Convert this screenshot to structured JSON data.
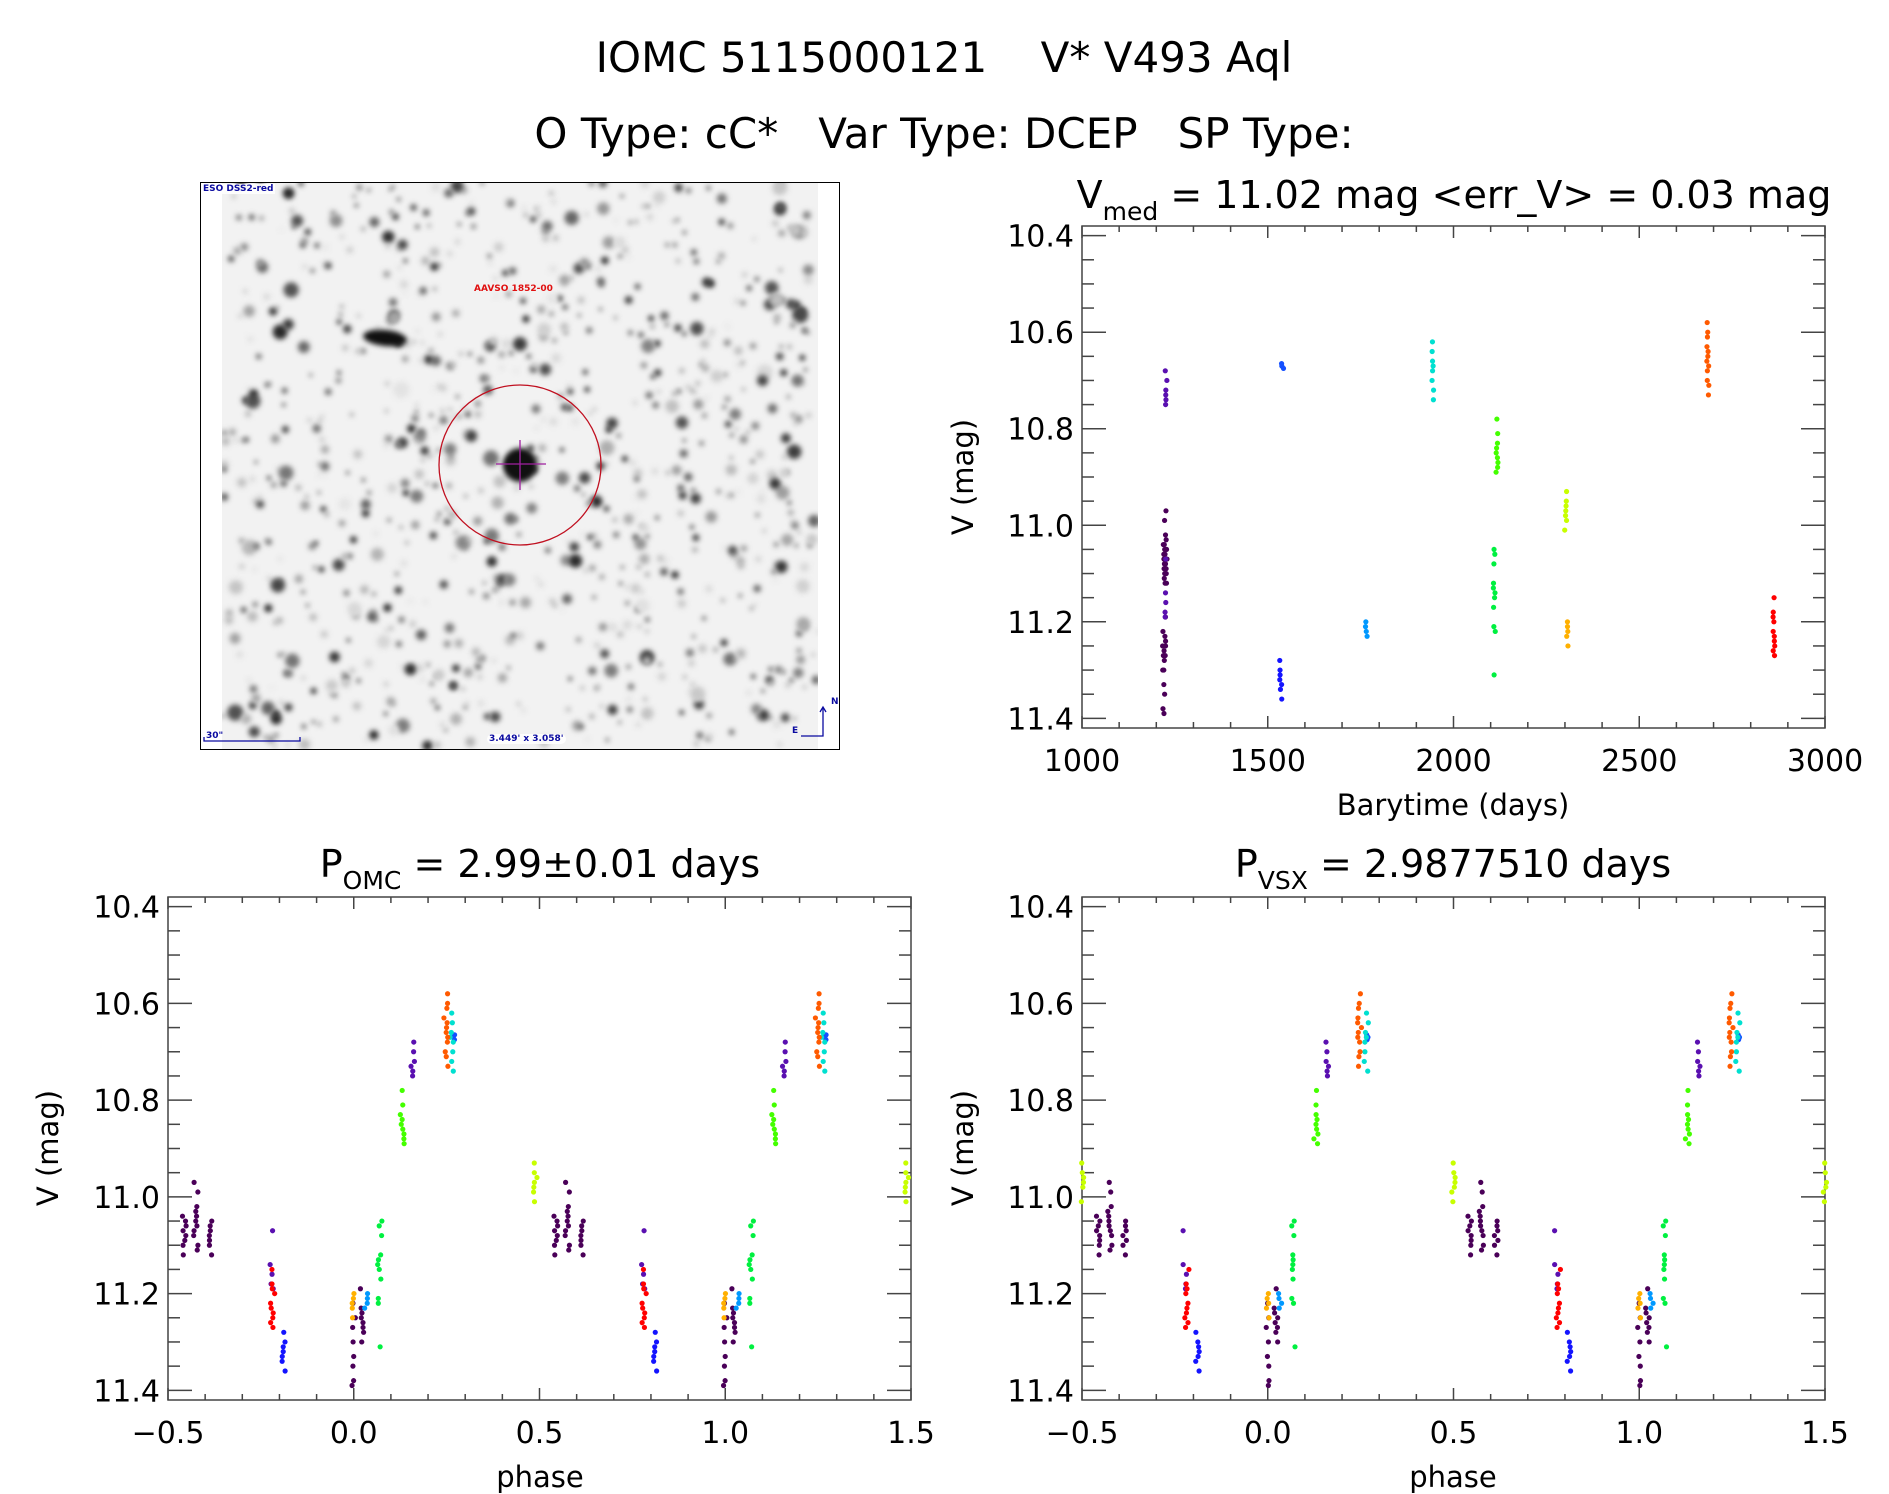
{
  "header": {
    "line1": "IOMC 5115000121    V* V493 Aql",
    "line2": "O Type: cC*   Var Type: DCEP   SP Type:"
  },
  "finder": {
    "survey_label": "ESO DSS2-red",
    "target_label": "AAVSO 1852-00",
    "scale_label": "30\"",
    "fov_label": "3.449' x 3.058'",
    "north_label": "N",
    "east_label": "E"
  },
  "chart_data": [
    {
      "type": "scatter",
      "id": "lightcurve",
      "title": {
        "main": "V",
        "sub": "med",
        "rest": " = 11.02 mag <err_V> = 0.03 mag"
      },
      "xlabel": "Barytime (days)",
      "ylabel": "V (mag)",
      "xlim": [
        1000,
        3000
      ],
      "ylim": [
        11.42,
        10.38
      ],
      "xticks": [
        1000,
        1500,
        2000,
        2500,
        3000
      ],
      "xtick_labels": [
        "1000",
        "1500",
        "2000",
        "2500",
        "3000"
      ],
      "yticks": [
        10.4,
        10.6,
        10.8,
        11.0,
        11.2,
        11.4
      ],
      "ytick_labels": [
        "10.4",
        "10.6",
        "10.8",
        "11.0",
        "11.2",
        "11.4"
      ]
    },
    {
      "type": "scatter",
      "id": "phase_omc",
      "title": {
        "main": "P",
        "sub": "OMC",
        "rest": " = 2.99±0.01 days"
      },
      "xlabel": "phase",
      "ylabel": "V (mag)",
      "xlim": [
        -0.5,
        1.5
      ],
      "ylim": [
        11.42,
        10.38
      ],
      "xticks": [
        -0.5,
        0.0,
        0.5,
        1.0,
        1.5
      ],
      "xtick_labels": [
        "−0.5",
        "0.0",
        "0.5",
        "1.0",
        "1.5"
      ],
      "yticks": [
        10.4,
        10.6,
        10.8,
        11.0,
        11.2,
        11.4
      ],
      "ytick_labels": [
        "10.4",
        "10.6",
        "10.8",
        "11.0",
        "11.2",
        "11.4"
      ]
    },
    {
      "type": "scatter",
      "id": "phase_vsx",
      "title": {
        "main": "P",
        "sub": "VSX",
        "rest": " = 2.9877510 days"
      },
      "xlabel": "phase",
      "ylabel": "V (mag)",
      "xlim": [
        -0.5,
        1.5
      ],
      "ylim": [
        11.42,
        10.38
      ],
      "xticks": [
        -0.5,
        0.0,
        0.5,
        1.0,
        1.5
      ],
      "xtick_labels": [
        "−0.5",
        "0.0",
        "0.5",
        "1.0",
        "1.5"
      ],
      "yticks": [
        10.4,
        10.6,
        10.8,
        11.0,
        11.2,
        11.4
      ],
      "ytick_labels": [
        "10.4",
        "10.6",
        "10.8",
        "11.0",
        "11.2",
        "11.4"
      ]
    }
  ],
  "observations": [
    {
      "color": "#4a0058",
      "t": 1222,
      "phase_omc": -0.455,
      "phase_vsx": -0.455,
      "mags": [
        11.04,
        11.05,
        11.06,
        11.07,
        11.08,
        11.09,
        11.1,
        11.12
      ]
    },
    {
      "color": "#4a0058",
      "t": 1224,
      "phase_omc": -0.425,
      "phase_vsx": -0.425,
      "mags": [
        10.97,
        10.99,
        11.02,
        11.03,
        11.04,
        11.05,
        11.06,
        11.07,
        11.08,
        11.1,
        11.11
      ]
    },
    {
      "color": "#4a0058",
      "t": 1226,
      "phase_omc": -0.385,
      "phase_vsx": -0.385,
      "mags": [
        11.05,
        11.06,
        11.07,
        11.08,
        11.09,
        11.1,
        11.12
      ]
    },
    {
      "color": "#4a0058",
      "t": 1220,
      "phase_omc": 0.0,
      "phase_vsx": 0.0,
      "mags": [
        11.22,
        11.25,
        11.27,
        11.3,
        11.33,
        11.35,
        11.38,
        11.39
      ]
    },
    {
      "color": "#4a0058",
      "t": 1223,
      "phase_omc": 0.022,
      "phase_vsx": 0.022,
      "mags": [
        11.19,
        11.23,
        11.24,
        11.25,
        11.26,
        11.27,
        11.28,
        11.3
      ]
    },
    {
      "color": "#5a10b0",
      "t": 1226,
      "phase_omc": 0.158,
      "phase_vsx": 0.158,
      "mags": [
        10.68,
        10.7,
        10.72,
        10.73,
        10.74,
        10.75
      ]
    },
    {
      "color": "#5a10b0",
      "t": 1225,
      "phase_omc": -0.222,
      "phase_vsx": -0.222,
      "mags": [
        11.07,
        11.14,
        11.16,
        11.18,
        11.19
      ]
    },
    {
      "color": "#1414ff",
      "t": 1535,
      "phase_omc": -0.19,
      "phase_vsx": -0.19,
      "mags": [
        11.28,
        11.3,
        11.31,
        11.32,
        11.33,
        11.34,
        11.36
      ]
    },
    {
      "color": "#1450ff",
      "t": 1540,
      "phase_omc": 0.27,
      "phase_vsx": 0.27,
      "mags": [
        10.665,
        10.67,
        10.675
      ]
    },
    {
      "color": "#0098ff",
      "t": 1765,
      "phase_omc": 0.035,
      "phase_vsx": 0.035,
      "mags": [
        11.2,
        11.21,
        11.22,
        11.23
      ]
    },
    {
      "color": "#00e0d0",
      "t": 1945,
      "phase_omc": 0.265,
      "phase_vsx": 0.265,
      "mags": [
        10.62,
        10.64,
        10.66,
        10.67,
        10.68,
        10.7,
        10.72,
        10.74
      ]
    },
    {
      "color": "#44ff00",
      "t": 2117,
      "phase_omc": 0.13,
      "phase_vsx": 0.13,
      "mags": [
        10.78,
        10.81,
        10.83,
        10.84,
        10.85,
        10.86,
        10.87,
        10.88,
        10.89
      ]
    },
    {
      "color": "#00f040",
      "t": 2110,
      "phase_omc": 0.07,
      "phase_vsx": 0.07,
      "mags": [
        11.05,
        11.06,
        11.08,
        11.12,
        11.13,
        11.14,
        11.15,
        11.17,
        11.21,
        11.22,
        11.31
      ]
    },
    {
      "color": "#c8ff00",
      "t": 2302,
      "phase_omc": 0.49,
      "phase_vsx": 0.5,
      "mags": [
        10.93,
        10.95,
        10.96,
        10.97,
        10.98,
        10.99,
        11.01
      ]
    },
    {
      "color": "#ffb000",
      "t": 2306,
      "phase_omc": -0.002,
      "phase_vsx": -0.002,
      "mags": [
        11.2,
        11.21,
        11.22,
        11.23,
        11.25
      ]
    },
    {
      "color": "#ff5a00",
      "t": 2685,
      "phase_omc": 0.248,
      "phase_vsx": 0.248,
      "mags": [
        10.58,
        10.6,
        10.61,
        10.63,
        10.64,
        10.65,
        10.66,
        10.67,
        10.68,
        10.7,
        10.71,
        10.73
      ]
    },
    {
      "color": "#ff0000",
      "t": 2862,
      "phase_omc": -0.218,
      "phase_vsx": -0.218,
      "mags": [
        11.15,
        11.18,
        11.19,
        11.2,
        11.22,
        11.23,
        11.24,
        11.25,
        11.26,
        11.27
      ]
    }
  ]
}
